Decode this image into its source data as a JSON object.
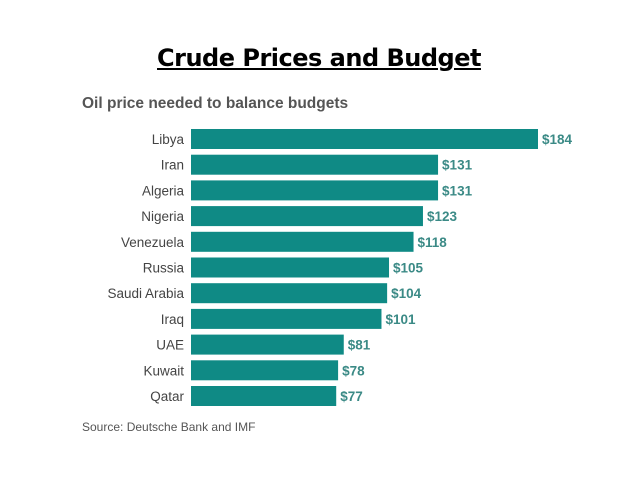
{
  "slide": {
    "title": "Crude Prices and Budget"
  },
  "chart_data": {
    "type": "bar",
    "orientation": "horizontal",
    "title": "Oil price needed to balance budgets",
    "source": "Source: Deutsche Bank and IMF",
    "categories": [
      "Libya",
      "Iran",
      "Algeria",
      "Nigeria",
      "Venezuela",
      "Russia",
      "Saudi Arabia",
      "Iraq",
      "UAE",
      "Kuwait",
      "Qatar"
    ],
    "values": [
      184,
      131,
      131,
      123,
      118,
      105,
      104,
      101,
      81,
      78,
      77
    ],
    "value_labels": [
      "$184",
      "$131",
      "$131",
      "$123",
      "$118",
      "$105",
      "$104",
      "$101",
      "$81",
      "$78",
      "$77"
    ],
    "bar_color": "#0f8a85",
    "value_label_color": "#3b8a86",
    "grid": false,
    "legend": "none"
  }
}
